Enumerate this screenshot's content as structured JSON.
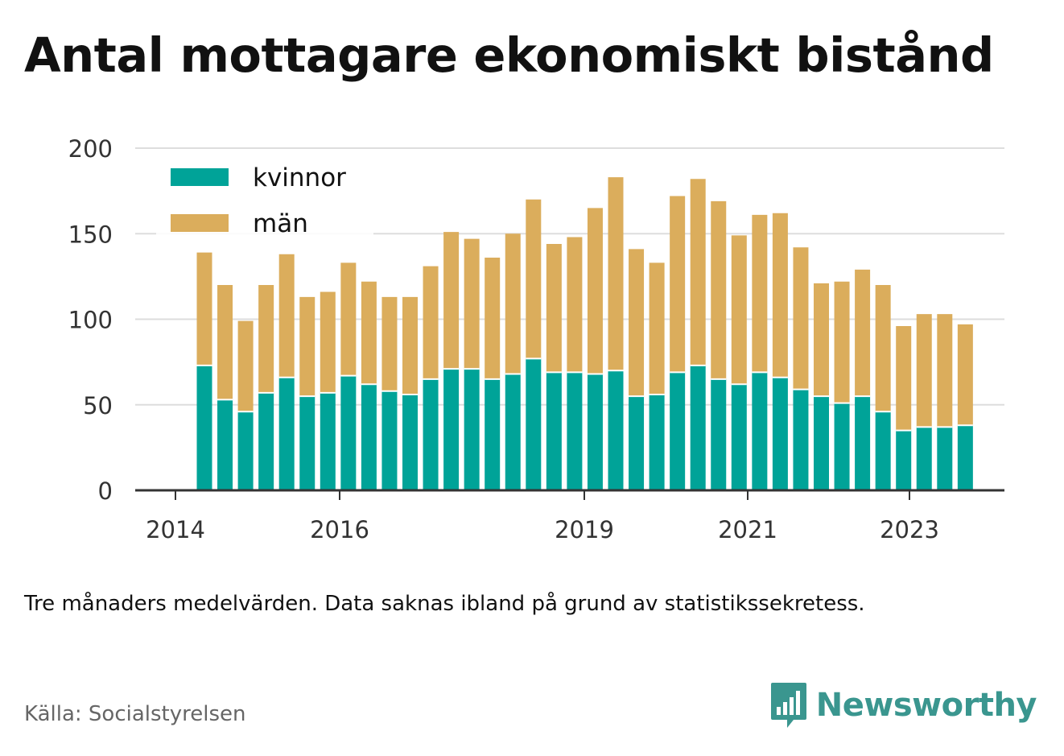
{
  "title": "Antal mottagare ekonomiskt bistånd",
  "note": "Tre månaders medelvärden. Data saknas ibland på grund av statistikssekretess.",
  "source": "Källa: Socialstyrelsen",
  "brand": {
    "name": "Newsworthy",
    "logo_icon": "bar-chart-speech-bubble-icon",
    "color": "#3a968f"
  },
  "colors": {
    "kvinnor": "#00a398",
    "man": "#dbad5c",
    "grid": "#dddddd",
    "axis": "#333333"
  },
  "chart_data": {
    "type": "bar",
    "stacked": true,
    "ylim": [
      0,
      200
    ],
    "yticks": [
      0,
      50,
      100,
      150,
      200
    ],
    "grid": true,
    "legend_position": "top-left",
    "xtick_labels": [
      "2014",
      "2016",
      "2019",
      "2021",
      "2023"
    ],
    "series": [
      {
        "name": "kvinnor",
        "values": [
          73,
          53,
          46,
          57,
          66,
          55,
          57,
          67,
          62,
          58,
          56,
          65,
          71,
          71,
          65,
          68,
          77,
          69,
          69,
          68,
          70,
          55,
          56,
          69,
          73,
          65,
          62,
          69,
          66,
          59,
          55,
          51,
          55,
          46,
          35,
          37,
          37,
          38
        ]
      },
      {
        "name": "män",
        "values": [
          66,
          67,
          53,
          63,
          72,
          58,
          59,
          66,
          60,
          55,
          57,
          66,
          80,
          76,
          71,
          82,
          93,
          75,
          79,
          97,
          113,
          86,
          77,
          103,
          109,
          104,
          87,
          92,
          96,
          83,
          66,
          71,
          74,
          74,
          61,
          66,
          66,
          59
        ]
      }
    ]
  }
}
